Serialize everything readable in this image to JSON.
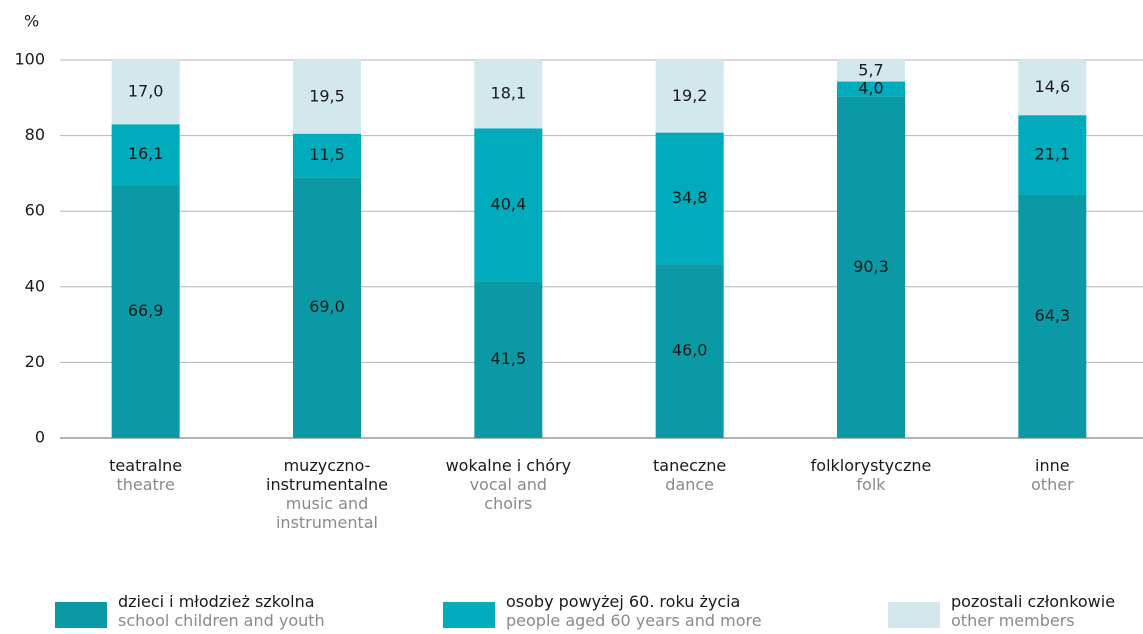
{
  "chart_data": {
    "type": "stacked_bar",
    "y_axis_label": "%",
    "categories": [
      "teatralne",
      "muzyczno-instrumentalne",
      "wokalne i chóry",
      "taneczne",
      "folklorystyczne",
      "inne"
    ],
    "category_translations": [
      "theatre",
      "music and instrumental",
      "vocal and choirs",
      "dance",
      "folk",
      "other"
    ],
    "series": [
      {
        "name": "dzieci i młodzież szkolna",
        "name_translation": "school children and youth",
        "color": "#0a99a5",
        "values": [
          66.9,
          69.0,
          41.5,
          46.0,
          90.3,
          64.3
        ],
        "value_labels": [
          "66,9",
          "69,0",
          "41,5",
          "46,0",
          "90,3",
          "64,3"
        ]
      },
      {
        "name": "osoby powyżej 60. roku życia",
        "name_translation": "people aged 60 years and more",
        "color": "#00abbb",
        "values": [
          16.1,
          11.5,
          40.4,
          34.8,
          4.0,
          21.1
        ],
        "value_labels": [
          "16,1",
          "11,5",
          "40,4",
          "34,8",
          "4,0",
          "21,1"
        ]
      },
      {
        "name": "pozostali członkowie",
        "name_translation": "other members",
        "color": "#d3e8ec",
        "values": [
          17.0,
          19.5,
          18.1,
          19.2,
          5.7,
          14.6
        ],
        "value_labels": [
          "17,0",
          "19,5",
          "18,1",
          "19,2",
          "5,7",
          "14,6"
        ]
      }
    ],
    "ylim": [
      0,
      100
    ],
    "yticks": [
      0,
      20,
      40,
      60,
      80,
      100
    ],
    "grid": true
  }
}
